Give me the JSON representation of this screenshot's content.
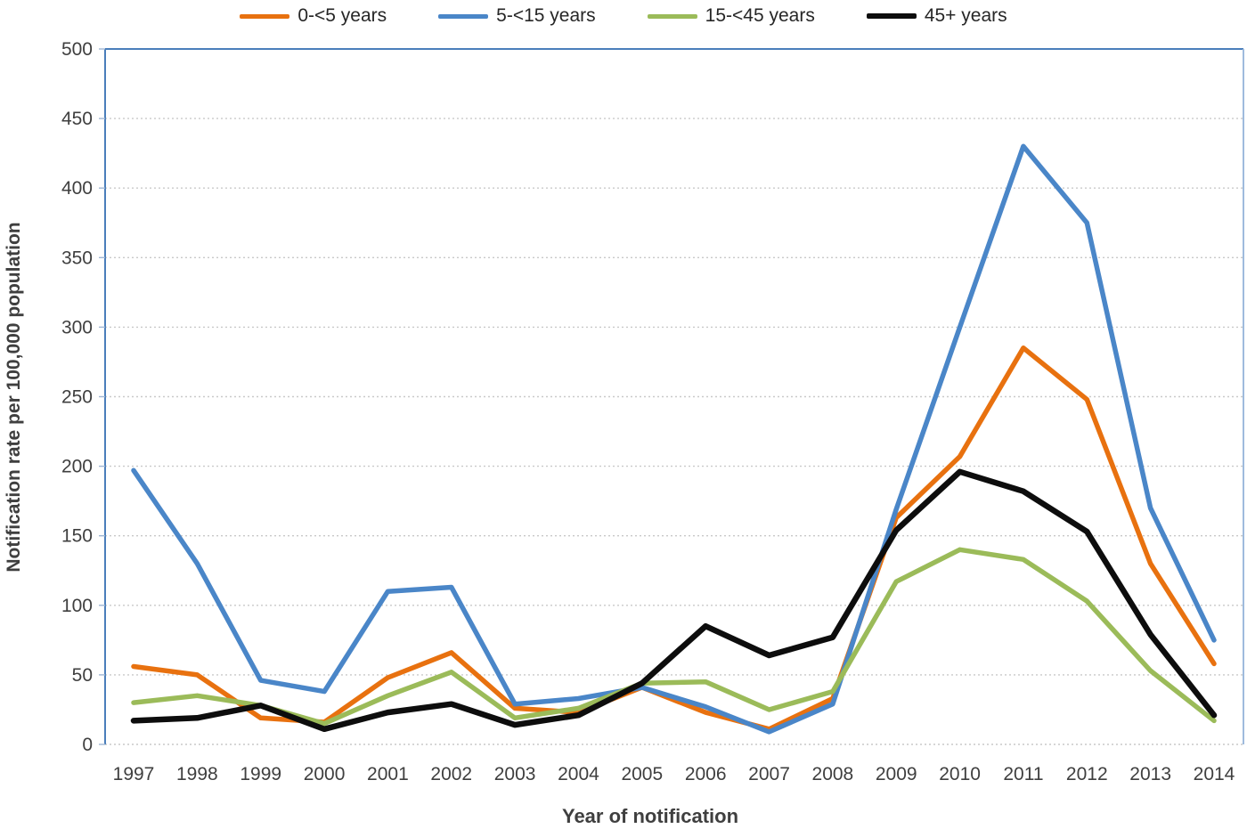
{
  "page_background": "#ffffff",
  "chart_data": {
    "type": "line",
    "title": "",
    "xlabel": "Year of notification",
    "ylabel": "Notification rate per 100,000  population",
    "x": [
      1997,
      1998,
      1999,
      2000,
      2001,
      2002,
      2003,
      2004,
      2005,
      2006,
      2007,
      2008,
      2009,
      2010,
      2011,
      2012,
      2013,
      2014
    ],
    "ylim": [
      0,
      500
    ],
    "ytick_step": 50,
    "yticks": [
      0,
      50,
      100,
      150,
      200,
      250,
      300,
      350,
      400,
      450,
      500
    ],
    "grid": true,
    "legend_position": "top",
    "series": [
      {
        "name": "0-<5 years",
        "color": "#e8710f",
        "values": [
          56,
          50,
          19,
          16,
          48,
          66,
          26,
          23,
          41,
          23,
          11,
          33,
          163,
          207,
          285,
          248,
          130,
          58
        ]
      },
      {
        "name": "5-<15 years",
        "color": "#4a86c8",
        "values": [
          197,
          130,
          46,
          38,
          110,
          113,
          29,
          33,
          41,
          27,
          9,
          29,
          169,
          300,
          430,
          375,
          170,
          75
        ]
      },
      {
        "name": "15-<45 years",
        "color": "#9bbb59",
        "values": [
          30,
          35,
          28,
          15,
          35,
          52,
          19,
          26,
          44,
          45,
          25,
          38,
          117,
          140,
          133,
          103,
          53,
          17
        ]
      },
      {
        "name": "45+ years",
        "color": "#0d0d0d",
        "values": [
          17,
          19,
          28,
          11,
          23,
          29,
          14,
          21,
          44,
          85,
          64,
          77,
          154,
          196,
          182,
          153,
          79,
          21
        ]
      }
    ],
    "styles": {
      "plot_border_color": "#4a7ebb",
      "gridline_color": "#c9c9c9",
      "tick_text_color": "#3f3f3f",
      "axis_title_color": "#3f3f3f",
      "tick_mark_color": "#9fb6d4"
    }
  }
}
